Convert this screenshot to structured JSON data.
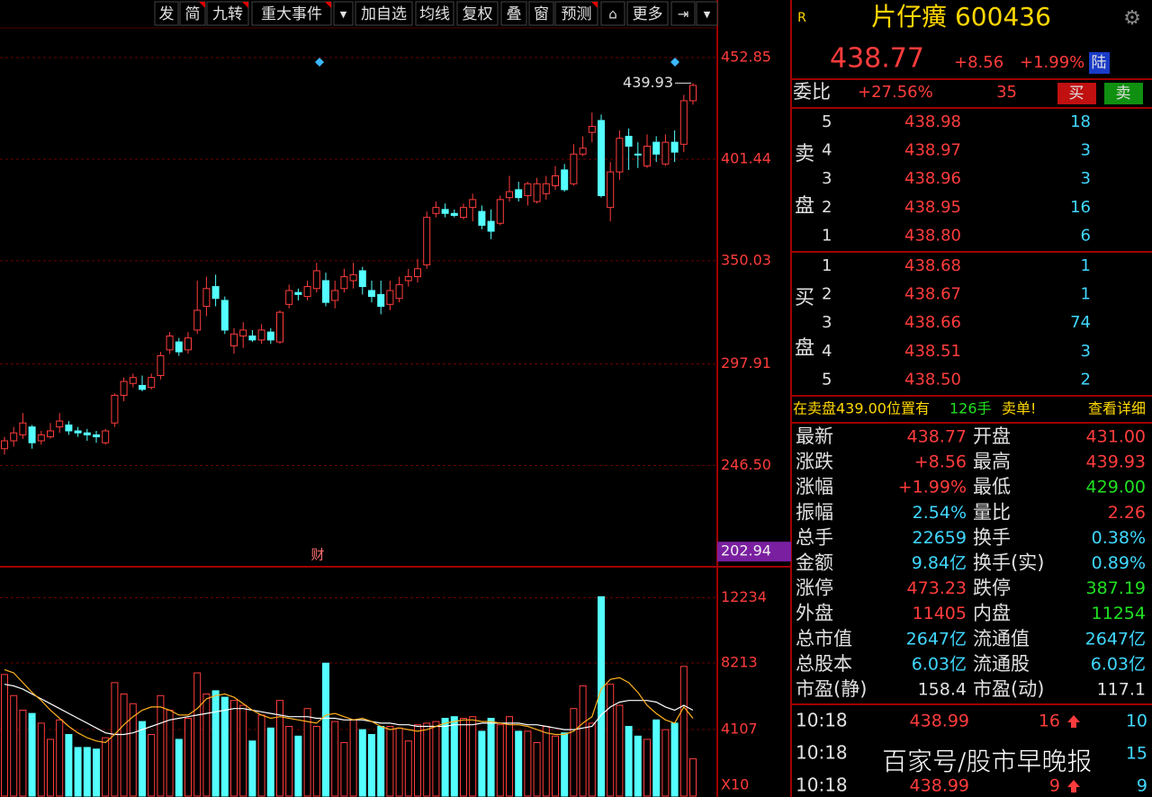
{
  "toolbar": [
    "发",
    "简",
    "九转",
    "重大事件",
    "加自选",
    "均线",
    "复权",
    "叠",
    "窗",
    "预测",
    "更多"
  ],
  "chart_data": {
    "type": "candlestick",
    "up_color": "#ff3c3c",
    "down_color": "#54ffff",
    "ylim": [
      195.3,
      468.3
    ],
    "yticks": [
      452.85,
      401.44,
      350.03,
      297.91,
      {
        "value": 246.5,
        "label": "246.50"
      }
    ],
    "cursor_price": 202.94,
    "high_label": "439.93",
    "annotation": "财",
    "open": [
      255,
      259,
      262,
      266,
      259,
      261,
      266,
      267,
      264,
      263,
      262,
      258,
      268,
      282,
      288,
      287,
      286,
      292,
      305,
      309,
      305,
      315,
      327,
      337,
      330,
      307,
      312,
      312,
      310,
      314,
      309,
      328,
      334,
      332,
      336,
      340,
      330,
      336,
      340,
      345,
      335,
      333,
      328,
      331,
      340,
      342,
      348,
      374,
      376,
      374,
      372,
      377,
      375,
      370,
      369,
      382,
      386,
      383,
      380,
      384,
      388,
      396,
      389,
      404,
      415,
      421,
      377,
      395,
      413,
      404,
      398,
      410,
      399,
      410,
      409,
      431
    ],
    "close": [
      259,
      263,
      268,
      258,
      262,
      264,
      269,
      264,
      263,
      262,
      261,
      264,
      282,
      289,
      291,
      285,
      291,
      302,
      312,
      304,
      311,
      325,
      336,
      331,
      315,
      313,
      315,
      310,
      315,
      310,
      324,
      335,
      333,
      337,
      345,
      329,
      335,
      342,
      343,
      337,
      332,
      327,
      335,
      338,
      342,
      346,
      372,
      377,
      374,
      373,
      377,
      381,
      368,
      365,
      381,
      385,
      382,
      389,
      389,
      389,
      393,
      386,
      404,
      407,
      418,
      383,
      395,
      412,
      408,
      404,
      408,
      404,
      410,
      405,
      431,
      438.77
    ],
    "high": [
      261,
      266,
      273,
      267,
      264,
      268,
      273,
      269,
      266,
      265,
      264,
      265,
      283,
      291,
      293,
      292,
      293,
      304,
      314,
      311,
      314,
      340,
      342,
      343,
      332,
      316,
      319,
      315,
      318,
      316,
      325,
      338,
      336,
      340,
      349,
      344,
      340,
      346,
      349,
      347,
      340,
      340,
      340,
      342,
      346,
      351,
      375,
      380,
      379,
      376,
      379,
      384,
      378,
      376,
      383,
      393,
      390,
      390,
      392,
      393,
      398,
      399,
      409,
      413,
      425,
      424,
      400,
      416,
      417,
      410,
      414,
      413,
      414,
      416,
      434,
      439.93
    ],
    "low": [
      252,
      256,
      260,
      255,
      257,
      260,
      263,
      262,
      261,
      259,
      258,
      257,
      266,
      279,
      286,
      284,
      285,
      290,
      303,
      302,
      303,
      313,
      322,
      327,
      313,
      303,
      306,
      309,
      308,
      308,
      308,
      326,
      330,
      330,
      334,
      327,
      326,
      334,
      336,
      333,
      329,
      323,
      325,
      329,
      337,
      339,
      346,
      372,
      372,
      372,
      371,
      370,
      366,
      361,
      368,
      380,
      380,
      378,
      379,
      381,
      386,
      385,
      388,
      403,
      410,
      382,
      370,
      391,
      396,
      397,
      397,
      400,
      398,
      400,
      405,
      429
    ],
    "volume": [
      7500,
      6200,
      5300,
      5100,
      4500,
      3500,
      4700,
      3800,
      3000,
      3000,
      2900,
      3600,
      7000,
      6300,
      5700,
      4600,
      3800,
      6200,
      5300,
      3500,
      4800,
      7600,
      6300,
      6500,
      6100,
      5900,
      5600,
      3400,
      5000,
      4200,
      5900,
      4300,
      3700,
      5400,
      4300,
      8200,
      4600,
      3300,
      4700,
      4100,
      3800,
      4300,
      4300,
      4200,
      3400,
      4400,
      4500,
      4600,
      4800,
      4900,
      4800,
      4900,
      4000,
      4800,
      4400,
      4900,
      4000,
      4000,
      3300,
      4300,
      3700,
      3900,
      5400,
      6800,
      4500,
      12300,
      6900,
      5600,
      4300,
      3700,
      3500,
      4700,
      4100,
      4500,
      8000,
      2300
    ],
    "vlim": [
      0,
      14150
    ],
    "vticks": [
      12234,
      8213,
      4107
    ],
    "vunit": "X10",
    "ma": [
      {
        "color": "#ffffff",
        "values": [
          6900,
          6800,
          6600,
          6300,
          6000,
          5700,
          5400,
          5100,
          4800,
          4500,
          4200,
          3900,
          3800,
          3800,
          3900,
          4100,
          4300,
          4500,
          4700,
          4800,
          4900,
          5000,
          5100,
          5200,
          5300,
          5400,
          5400,
          5300,
          5200,
          5100,
          5000,
          4900,
          4900,
          4900,
          4800,
          4800,
          4800,
          4700,
          4700,
          4700,
          4600,
          4500,
          4500,
          4400,
          4400,
          4300,
          4300,
          4300,
          4300,
          4400,
          4400,
          4400,
          4500,
          4500,
          4500,
          4500,
          4500,
          4400,
          4400,
          4300,
          4200,
          4100,
          4100,
          4200,
          4300,
          5000,
          5500,
          5800,
          5900,
          5900,
          5900,
          5800,
          5500,
          5300,
          5600,
          5300
        ]
      },
      {
        "color": "#ffb020",
        "values": [
          7800,
          7600,
          7000,
          6400,
          5900,
          5300,
          4800,
          4300,
          3900,
          3600,
          3400,
          3300,
          3800,
          4400,
          4900,
          5300,
          5500,
          5500,
          5300,
          5000,
          5000,
          5400,
          6000,
          6200,
          6300,
          6100,
          5700,
          5300,
          5000,
          4800,
          4900,
          4800,
          4700,
          4600,
          4500,
          5000,
          5100,
          4900,
          4700,
          4800,
          4600,
          4300,
          4100,
          4200,
          4100,
          4000,
          4100,
          4300,
          4500,
          4600,
          4700,
          4700,
          4600,
          4600,
          4500,
          4400,
          4400,
          4300,
          4100,
          3900,
          3800,
          3800,
          4000,
          4500,
          4900,
          6600,
          7200,
          7300,
          7000,
          6400,
          5600,
          5100,
          4700,
          4500,
          5500,
          4800
        ]
      }
    ]
  },
  "quote": {
    "badge": "R",
    "title": "片仔癀 600436",
    "price": "438.77",
    "change": "+8.56",
    "change_pct": "+1.99%",
    "tag": "陆"
  },
  "order_ratio": {
    "label": "委比",
    "ratio": "+27.56%",
    "diff": "35",
    "buy": "买",
    "sell": "卖"
  },
  "asks": {
    "label": [
      "卖",
      "盘"
    ],
    "rows": [
      [
        "5",
        "438.98",
        "18"
      ],
      [
        "4",
        "438.97",
        "3"
      ],
      [
        "3",
        "438.96",
        "3"
      ],
      [
        "2",
        "438.95",
        "16"
      ],
      [
        "1",
        "438.80",
        "6"
      ]
    ]
  },
  "bids": {
    "label": [
      "买",
      "盘"
    ],
    "rows": [
      [
        "1",
        "438.68",
        "1"
      ],
      [
        "2",
        "438.67",
        "1"
      ],
      [
        "3",
        "438.66",
        "74"
      ],
      [
        "4",
        "438.51",
        "3"
      ],
      [
        "5",
        "438.50",
        "2"
      ]
    ]
  },
  "notice": {
    "text": "在卖盘439.00位置有",
    "lots": "126手",
    "kind": "卖单!",
    "link": "查看详细"
  },
  "stats": [
    [
      "最新",
      "438.77",
      "开盘",
      "431.00"
    ],
    [
      "涨跌",
      "+8.56",
      "最高",
      "439.93"
    ],
    [
      "涨幅",
      "+1.99%",
      "最低",
      "429.00"
    ],
    [
      "振幅",
      "2.54%",
      "量比",
      "2.26"
    ],
    [
      "总手",
      "22659",
      "换手",
      "0.38%"
    ],
    [
      "金额",
      "9.84亿",
      "换手(实)",
      "0.89%"
    ],
    [
      "涨停",
      "473.23",
      "跌停",
      "387.19"
    ],
    [
      "外盘",
      "11405",
      "内盘",
      "11254"
    ],
    [
      "总市值",
      "2647亿",
      "流通值",
      "2647亿"
    ],
    [
      "总股本",
      "6.03亿",
      "流通股",
      "6.03亿"
    ],
    [
      "市盈(静)",
      "158.4",
      "市盈(动)",
      "117.1"
    ]
  ],
  "ticks": [
    {
      "time": "10:18",
      "price": "438.99",
      "volume": "16",
      "count": "10"
    },
    {
      "time": "10:18",
      "count": "15"
    },
    {
      "time": "10:18",
      "price": "438.99",
      "volume": "9",
      "count": "9"
    }
  ],
  "watermark": "百家号/股市早晚报"
}
